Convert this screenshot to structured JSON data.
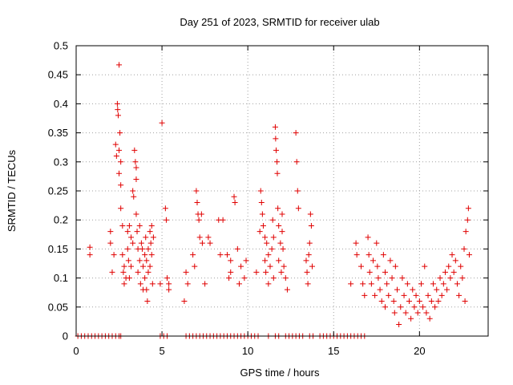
{
  "chart_data": {
    "type": "scatter",
    "title": "Day 251 of 2023, SRMTID for receiver ulab",
    "xlabel": "GPS time / hours",
    "ylabel": "SRMTID / TECUs",
    "xlim": [
      0,
      24
    ],
    "ylim": [
      0,
      0.5
    ],
    "xticks": [
      0,
      5,
      10,
      15,
      20
    ],
    "xtick_labels": [
      "0",
      "5",
      "10",
      "15",
      "20"
    ],
    "yticks": [
      0,
      0.05,
      0.1,
      0.15,
      0.2,
      0.25,
      0.3,
      0.35,
      0.4,
      0.45,
      0.5
    ],
    "ytick_labels": [
      "0",
      "0.05",
      "0.1",
      "0.15",
      "0.2",
      "0.25",
      "0.3",
      "0.35",
      "0.4",
      "0.45",
      "0.5"
    ],
    "grid": true,
    "marker": "+",
    "colors": {
      "points": "#e00000",
      "grid": "#a0a0a0",
      "axes": "#000000"
    },
    "series": [
      {
        "name": "SRMTID",
        "points": [
          [
            0.8,
            0.153
          ],
          [
            0.8,
            0.14
          ],
          [
            2.0,
            0.18
          ],
          [
            2.0,
            0.16
          ],
          [
            2.1,
            0.11
          ],
          [
            2.2,
            0.14
          ],
          [
            2.3,
            0.33
          ],
          [
            2.35,
            0.31
          ],
          [
            2.4,
            0.4
          ],
          [
            2.42,
            0.39
          ],
          [
            2.45,
            0.38
          ],
          [
            2.5,
            0.467
          ],
          [
            2.5,
            0.32
          ],
          [
            2.5,
            0.28
          ],
          [
            2.55,
            0.35
          ],
          [
            2.6,
            0.26
          ],
          [
            2.6,
            0.3
          ],
          [
            2.6,
            0.22
          ],
          [
            2.7,
            0.19
          ],
          [
            2.7,
            0.14
          ],
          [
            2.75,
            0.11
          ],
          [
            2.8,
            0.12
          ],
          [
            2.8,
            0.09
          ],
          [
            2.9,
            0.1
          ],
          [
            3.0,
            0.18
          ],
          [
            3.0,
            0.15
          ],
          [
            3.05,
            0.13
          ],
          [
            3.1,
            0.19
          ],
          [
            3.1,
            0.1
          ],
          [
            3.2,
            0.17
          ],
          [
            3.2,
            0.12
          ],
          [
            3.3,
            0.25
          ],
          [
            3.3,
            0.16
          ],
          [
            3.35,
            0.24
          ],
          [
            3.4,
            0.32
          ],
          [
            3.45,
            0.3
          ],
          [
            3.5,
            0.29
          ],
          [
            3.5,
            0.27
          ],
          [
            3.5,
            0.21
          ],
          [
            3.55,
            0.18
          ],
          [
            3.6,
            0.15
          ],
          [
            3.6,
            0.11
          ],
          [
            3.7,
            0.19
          ],
          [
            3.7,
            0.13
          ],
          [
            3.75,
            0.09
          ],
          [
            3.8,
            0.16
          ],
          [
            3.85,
            0.15
          ],
          [
            3.9,
            0.12
          ],
          [
            3.9,
            0.08
          ],
          [
            4.0,
            0.14
          ],
          [
            4.0,
            0.1
          ],
          [
            4.05,
            0.17
          ],
          [
            4.1,
            0.13
          ],
          [
            4.1,
            0.08
          ],
          [
            4.15,
            0.06
          ],
          [
            4.2,
            0.15
          ],
          [
            4.2,
            0.11
          ],
          [
            4.3,
            0.18
          ],
          [
            4.3,
            0.12
          ],
          [
            4.35,
            0.16
          ],
          [
            4.4,
            0.19
          ],
          [
            4.4,
            0.14
          ],
          [
            4.45,
            0.09
          ],
          [
            4.5,
            0.17
          ],
          [
            4.9,
            0.09
          ],
          [
            5.0,
            0.367
          ],
          [
            5.2,
            0.22
          ],
          [
            5.25,
            0.2
          ],
          [
            5.3,
            0.1
          ],
          [
            5.4,
            0.09
          ],
          [
            5.4,
            0.08
          ],
          [
            6.3,
            0.06
          ],
          [
            6.4,
            0.11
          ],
          [
            6.5,
            0.09
          ],
          [
            6.8,
            0.14
          ],
          [
            6.9,
            0.12
          ],
          [
            7.0,
            0.25
          ],
          [
            7.05,
            0.23
          ],
          [
            7.1,
            0.21
          ],
          [
            7.15,
            0.2
          ],
          [
            7.2,
            0.17
          ],
          [
            7.3,
            0.21
          ],
          [
            7.35,
            0.16
          ],
          [
            7.5,
            0.09
          ],
          [
            7.7,
            0.17
          ],
          [
            7.8,
            0.16
          ],
          [
            8.3,
            0.2
          ],
          [
            8.4,
            0.14
          ],
          [
            8.55,
            0.2
          ],
          [
            8.8,
            0.14
          ],
          [
            8.9,
            0.1
          ],
          [
            9.0,
            0.13
          ],
          [
            9.0,
            0.11
          ],
          [
            9.2,
            0.24
          ],
          [
            9.25,
            0.23
          ],
          [
            9.4,
            0.15
          ],
          [
            9.5,
            0.09
          ],
          [
            9.6,
            0.12
          ],
          [
            9.8,
            0.1
          ],
          [
            9.9,
            0.13
          ],
          [
            10.5,
            0.11
          ],
          [
            10.7,
            0.18
          ],
          [
            10.75,
            0.25
          ],
          [
            10.8,
            0.23
          ],
          [
            10.85,
            0.21
          ],
          [
            10.9,
            0.19
          ],
          [
            11.0,
            0.17
          ],
          [
            11.0,
            0.13
          ],
          [
            11.05,
            0.11
          ],
          [
            11.1,
            0.16
          ],
          [
            11.2,
            0.14
          ],
          [
            11.2,
            0.09
          ],
          [
            11.3,
            0.12
          ],
          [
            11.4,
            0.15
          ],
          [
            11.45,
            0.2
          ],
          [
            11.5,
            0.17
          ],
          [
            11.5,
            0.1
          ],
          [
            11.6,
            0.36
          ],
          [
            11.62,
            0.34
          ],
          [
            11.65,
            0.32
          ],
          [
            11.7,
            0.3
          ],
          [
            11.72,
            0.28
          ],
          [
            11.75,
            0.22
          ],
          [
            11.8,
            0.19
          ],
          [
            11.8,
            0.13
          ],
          [
            11.9,
            0.16
          ],
          [
            11.95,
            0.11
          ],
          [
            12.0,
            0.21
          ],
          [
            12.0,
            0.18
          ],
          [
            12.05,
            0.15
          ],
          [
            12.1,
            0.12
          ],
          [
            12.2,
            0.1
          ],
          [
            12.3,
            0.08
          ],
          [
            12.8,
            0.35
          ],
          [
            12.85,
            0.3
          ],
          [
            12.9,
            0.25
          ],
          [
            12.95,
            0.22
          ],
          [
            13.4,
            0.13
          ],
          [
            13.45,
            0.11
          ],
          [
            13.5,
            0.09
          ],
          [
            13.55,
            0.14
          ],
          [
            13.6,
            0.16
          ],
          [
            13.65,
            0.21
          ],
          [
            13.7,
            0.19
          ],
          [
            13.75,
            0.12
          ],
          [
            16.0,
            0.09
          ],
          [
            16.3,
            0.16
          ],
          [
            16.35,
            0.14
          ],
          [
            16.6,
            0.12
          ],
          [
            16.7,
            0.09
          ],
          [
            16.8,
            0.07
          ],
          [
            17.0,
            0.17
          ],
          [
            17.05,
            0.14
          ],
          [
            17.1,
            0.11
          ],
          [
            17.2,
            0.09
          ],
          [
            17.3,
            0.13
          ],
          [
            17.4,
            0.07
          ],
          [
            17.5,
            0.16
          ],
          [
            17.55,
            0.12
          ],
          [
            17.6,
            0.1
          ],
          [
            17.7,
            0.08
          ],
          [
            17.8,
            0.06
          ],
          [
            17.9,
            0.14
          ],
          [
            18.0,
            0.11
          ],
          [
            18.0,
            0.05
          ],
          [
            18.1,
            0.09
          ],
          [
            18.2,
            0.07
          ],
          [
            18.3,
            0.13
          ],
          [
            18.4,
            0.1
          ],
          [
            18.5,
            0.06
          ],
          [
            18.55,
            0.04
          ],
          [
            18.6,
            0.12
          ],
          [
            18.7,
            0.08
          ],
          [
            18.8,
            0.02
          ],
          [
            18.9,
            0.05
          ],
          [
            19.0,
            0.1
          ],
          [
            19.1,
            0.07
          ],
          [
            19.2,
            0.04
          ],
          [
            19.3,
            0.09
          ],
          [
            19.4,
            0.06
          ],
          [
            19.5,
            0.03
          ],
          [
            19.6,
            0.08
          ],
          [
            19.7,
            0.05
          ],
          [
            19.8,
            0.07
          ],
          [
            19.9,
            0.04
          ],
          [
            20.0,
            0.06
          ],
          [
            20.1,
            0.09
          ],
          [
            20.2,
            0.05
          ],
          [
            20.3,
            0.12
          ],
          [
            20.4,
            0.04
          ],
          [
            20.5,
            0.07
          ],
          [
            20.6,
            0.03
          ],
          [
            20.7,
            0.06
          ],
          [
            20.8,
            0.09
          ],
          [
            20.9,
            0.05
          ],
          [
            21.0,
            0.08
          ],
          [
            21.1,
            0.06
          ],
          [
            21.2,
            0.1
          ],
          [
            21.3,
            0.07
          ],
          [
            21.4,
            0.09
          ],
          [
            21.5,
            0.11
          ],
          [
            21.6,
            0.08
          ],
          [
            21.7,
            0.12
          ],
          [
            21.8,
            0.1
          ],
          [
            21.9,
            0.14
          ],
          [
            22.0,
            0.11
          ],
          [
            22.1,
            0.13
          ],
          [
            22.2,
            0.09
          ],
          [
            22.3,
            0.07
          ],
          [
            22.4,
            0.12
          ],
          [
            22.5,
            0.1
          ],
          [
            22.6,
            0.15
          ],
          [
            22.65,
            0.06
          ],
          [
            22.7,
            0.18
          ],
          [
            22.8,
            0.2
          ],
          [
            22.85,
            0.22
          ],
          [
            22.9,
            0.14
          ]
        ]
      }
    ],
    "zero_points_x": [
      0.1,
      0.3,
      0.5,
      0.7,
      0.9,
      1.1,
      1.3,
      1.5,
      1.7,
      1.9,
      2.1,
      2.3,
      2.5,
      2.6,
      4.9,
      5.1,
      5.3,
      6.4,
      6.6,
      6.8,
      7.0,
      7.2,
      7.4,
      7.6,
      7.8,
      8.0,
      8.2,
      8.4,
      8.6,
      8.8,
      9.0,
      9.2,
      9.4,
      9.6,
      9.8,
      10.0,
      10.2,
      10.4,
      10.6,
      11.2,
      11.6,
      11.8,
      12.2,
      12.4,
      12.6,
      12.8,
      13.0,
      13.2,
      13.6,
      13.8,
      14.2,
      14.4,
      14.6,
      14.8,
      15.0,
      15.2,
      15.4,
      15.6,
      15.8,
      16.0,
      16.2,
      16.4,
      16.6,
      16.8
    ]
  }
}
